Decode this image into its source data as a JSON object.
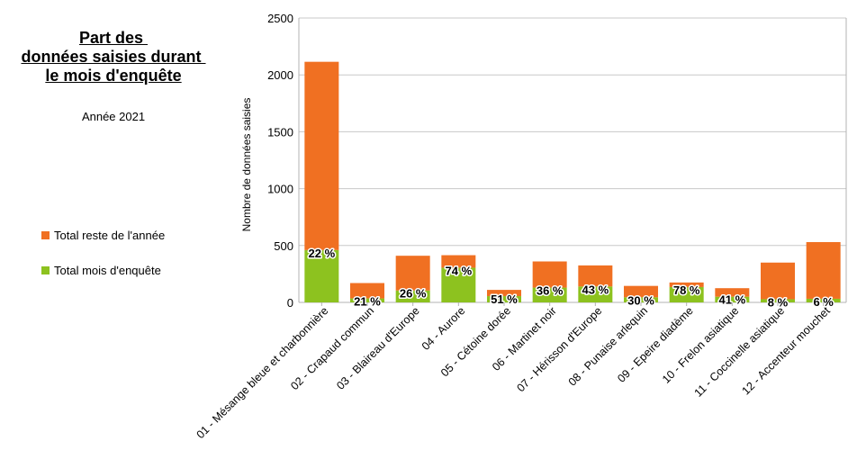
{
  "title_lines": [
    "Part des ",
    "données saisies durant ",
    "le mois d'enquête"
  ],
  "subtitle": "Année 2021",
  "colors": {
    "month": "#8dc21f",
    "rest": "#f07022",
    "grid": "#c8c8c8"
  },
  "chart_data": {
    "type": "bar",
    "stacked": true,
    "title": "Part des données saisies durant le mois d'enquête",
    "subtitle": "Année 2021",
    "xlabel": "",
    "ylabel": "Nombre de données saisies",
    "ylim": [
      0,
      2500
    ],
    "yticks": [
      0,
      500,
      1000,
      1500,
      2000,
      2500
    ],
    "grid": true,
    "legend_position": "left",
    "categories": [
      "01 - Mésange bleue et charbonnière",
      "02 - Crapaud commun",
      "03 - Blaireau d'Europe",
      "04 - Aurore",
      "05 - Cétoine dorée",
      "06 - Martinet noir",
      "07 - Hérisson d'Europe",
      "08 - Punaise arlequin",
      "09 - Epeire diadème",
      "10 - Frelon asiatique",
      "11 - Coccinelle asiatique",
      "12 - Accenteur mouchet"
    ],
    "series": [
      {
        "name": "Total mois d'enquête",
        "values": [
          460,
          35,
          105,
          305,
          55,
          130,
          140,
          45,
          135,
          50,
          28,
          32
        ]
      },
      {
        "name": "Total reste de l'année",
        "values": [
          1655,
          135,
          305,
          110,
          55,
          230,
          185,
          100,
          40,
          75,
          322,
          498
        ]
      }
    ],
    "data_labels": [
      "22 %",
      "21 %",
      "26 %",
      "74 %",
      "51 %",
      "36 %",
      "43 %",
      "30 %",
      "78 %",
      "41 %",
      "8 %",
      "6 %"
    ]
  }
}
